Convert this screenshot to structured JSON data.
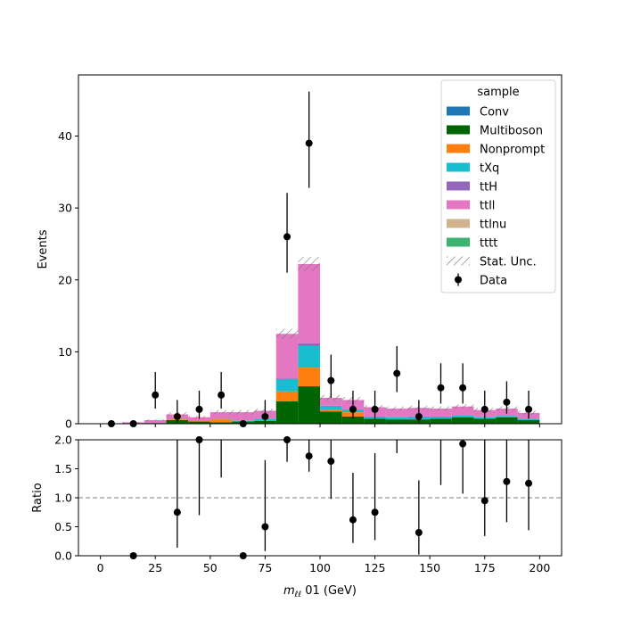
{
  "chart_data": {
    "type": "stacked-histogram-with-ratio",
    "bins": [
      0,
      10,
      20,
      30,
      40,
      50,
      60,
      70,
      80,
      90,
      100,
      110,
      120,
      130,
      140,
      150,
      160,
      170,
      180,
      190,
      200
    ],
    "centers": [
      5,
      15,
      25,
      35,
      45,
      55,
      65,
      75,
      85,
      95,
      105,
      115,
      125,
      135,
      145,
      155,
      165,
      175,
      185,
      195
    ],
    "xlabel_main": "m",
    "xlabel_sub": "ℓℓ",
    "xlabel_rest": " 01 (GeV)",
    "xlim": [
      -10,
      210
    ],
    "xticks": [
      0,
      25,
      50,
      75,
      100,
      125,
      150,
      175,
      200
    ],
    "top": {
      "ylabel": "Events",
      "ylim": [
        0,
        48.5
      ],
      "yticks": [
        0,
        10,
        20,
        30,
        40
      ],
      "series": [
        {
          "name": "Conv",
          "color": "#1f77b4",
          "values": [
            0,
            0,
            0,
            0,
            0,
            0,
            0,
            0,
            0,
            0,
            0,
            0,
            0,
            0,
            0,
            0,
            0,
            0,
            0,
            0
          ]
        },
        {
          "name": "Multiboson",
          "color": "#006400",
          "values": [
            0,
            0,
            0.1,
            0.5,
            0.3,
            0.2,
            0.3,
            0.4,
            3.1,
            5.2,
            1.7,
            1.0,
            0.7,
            0.6,
            0.6,
            0.7,
            0.9,
            0.7,
            0.9,
            0.5
          ]
        },
        {
          "name": "Nonprompt",
          "color": "#ff7f0e",
          "values": [
            0,
            0,
            0,
            0.1,
            0.1,
            0.4,
            0,
            0,
            1.4,
            2.6,
            0.2,
            0.6,
            0,
            0,
            0,
            0,
            0,
            0,
            0,
            0
          ]
        },
        {
          "name": "tXq",
          "color": "#17becf",
          "values": [
            0,
            0,
            0,
            0.1,
            0.1,
            0.1,
            0.1,
            0.3,
            1.6,
            3.0,
            0.6,
            0.4,
            0.3,
            0.3,
            0.4,
            0.3,
            0.3,
            0.2,
            0.2,
            0.2
          ]
        },
        {
          "name": "ttH",
          "color": "#9467bd",
          "values": [
            0,
            0,
            0,
            0,
            0,
            0,
            0,
            0,
            0.2,
            0.4,
            0,
            0,
            0,
            0,
            0,
            0,
            0,
            0,
            0,
            0
          ]
        },
        {
          "name": "ttll",
          "color": "#e377c2",
          "values": [
            0,
            0.2,
            0.4,
            0.6,
            0.4,
            0.9,
            1.2,
            1.1,
            6.2,
            11.0,
            1.1,
            1.3,
            1.3,
            1.2,
            1.2,
            1.1,
            1.2,
            1.0,
            1.0,
            0.8
          ]
        },
        {
          "name": "ttlnu",
          "color": "#d2b48c",
          "values": [
            0,
            0,
            0,
            0,
            0,
            0,
            0,
            0,
            0,
            0,
            0,
            0,
            0,
            0,
            0,
            0,
            0,
            0,
            0,
            0
          ]
        },
        {
          "name": "tttt",
          "color": "#3cb371",
          "values": [
            0,
            0,
            0,
            0,
            0,
            0,
            0,
            0,
            0,
            0,
            0,
            0,
            0,
            0,
            0,
            0,
            0,
            0,
            0,
            0
          ]
        }
      ],
      "stat_unc_name": "Stat. Unc.",
      "stat_unc": [
        0,
        0.05,
        0.1,
        0.3,
        0.2,
        0.3,
        0.3,
        0.3,
        0.7,
        1.0,
        0.4,
        0.4,
        0.3,
        0.3,
        0.3,
        0.3,
        0.3,
        0.3,
        0.3,
        0.3
      ],
      "data_name": "Data",
      "data": [
        {
          "x": 5,
          "y": 0,
          "lo": 0,
          "hi": 0
        },
        {
          "x": 15,
          "y": 0,
          "lo": 0,
          "hi": 0
        },
        {
          "x": 25,
          "y": 4,
          "lo": 2.1,
          "hi": 7.2
        },
        {
          "x": 35,
          "y": 1,
          "lo": 0.2,
          "hi": 3.3
        },
        {
          "x": 45,
          "y": 2,
          "lo": 0.7,
          "hi": 4.6
        },
        {
          "x": 55,
          "y": 4,
          "lo": 2.1,
          "hi": 7.2
        },
        {
          "x": 65,
          "y": 0,
          "lo": 0,
          "hi": 0
        },
        {
          "x": 75,
          "y": 1,
          "lo": 0.2,
          "hi": 3.3
        },
        {
          "x": 85,
          "y": 26,
          "lo": 21.0,
          "hi": 32.1
        },
        {
          "x": 95,
          "y": 39,
          "lo": 32.8,
          "hi": 46.2
        },
        {
          "x": 105,
          "y": 6,
          "lo": 3.6,
          "hi": 9.6
        },
        {
          "x": 115,
          "y": 2,
          "lo": 0.7,
          "hi": 4.6
        },
        {
          "x": 125,
          "y": 2,
          "lo": 0.7,
          "hi": 4.6
        },
        {
          "x": 135,
          "y": 7,
          "lo": 4.4,
          "hi": 10.8
        },
        {
          "x": 145,
          "y": 1,
          "lo": 0.2,
          "hi": 3.3
        },
        {
          "x": 155,
          "y": 5,
          "lo": 2.8,
          "hi": 8.4
        },
        {
          "x": 165,
          "y": 5,
          "lo": 2.8,
          "hi": 8.4
        },
        {
          "x": 175,
          "y": 2,
          "lo": 0.7,
          "hi": 4.6
        },
        {
          "x": 185,
          "y": 3,
          "lo": 1.4,
          "hi": 5.9
        },
        {
          "x": 195,
          "y": 2,
          "lo": 0.7,
          "hi": 4.6
        }
      ],
      "legend_title": "sample",
      "legend_loc": "upper right"
    },
    "ratio": {
      "ylabel": "Ratio",
      "ylim": [
        0,
        2
      ],
      "yticks": [
        "0.0",
        "0.5",
        "1.0",
        "1.5",
        "2.0"
      ],
      "reference": 1.0,
      "points": [
        {
          "x": 15,
          "y": 0,
          "lo": 0,
          "hi": 0
        },
        {
          "x": 35,
          "y": 0.75,
          "lo": 0.14,
          "hi": 2.0
        },
        {
          "x": 45,
          "y": 2.0,
          "lo": 0.7,
          "hi": 2.0
        },
        {
          "x": 55,
          "y": null,
          "lo": 1.35,
          "hi": 2.0
        },
        {
          "x": 65,
          "y": 0,
          "lo": 0,
          "hi": 0
        },
        {
          "x": 75,
          "y": 0.5,
          "lo": 0.08,
          "hi": 1.65
        },
        {
          "x": 85,
          "y": 2.0,
          "lo": 1.62,
          "hi": 2.0
        },
        {
          "x": 95,
          "y": 1.72,
          "lo": 1.45,
          "hi": 2.0
        },
        {
          "x": 105,
          "y": 1.63,
          "lo": 0.98,
          "hi": 2.0
        },
        {
          "x": 115,
          "y": 0.62,
          "lo": 0.22,
          "hi": 1.43
        },
        {
          "x": 125,
          "y": 0.75,
          "lo": 0.27,
          "hi": 1.77
        },
        {
          "x": 135,
          "y": null,
          "lo": 1.77,
          "hi": 2.0
        },
        {
          "x": 145,
          "y": 0.4,
          "lo": 0.02,
          "hi": 1.3
        },
        {
          "x": 155,
          "y": null,
          "lo": 1.22,
          "hi": 2.0
        },
        {
          "x": 165,
          "y": 1.93,
          "lo": 1.07,
          "hi": 2.0
        },
        {
          "x": 175,
          "y": 0.95,
          "lo": 0.34,
          "hi": 2.0
        },
        {
          "x": 185,
          "y": 1.28,
          "lo": 0.58,
          "hi": 2.0
        },
        {
          "x": 195,
          "y": 1.25,
          "lo": 0.44,
          "hi": 2.0
        }
      ]
    }
  }
}
